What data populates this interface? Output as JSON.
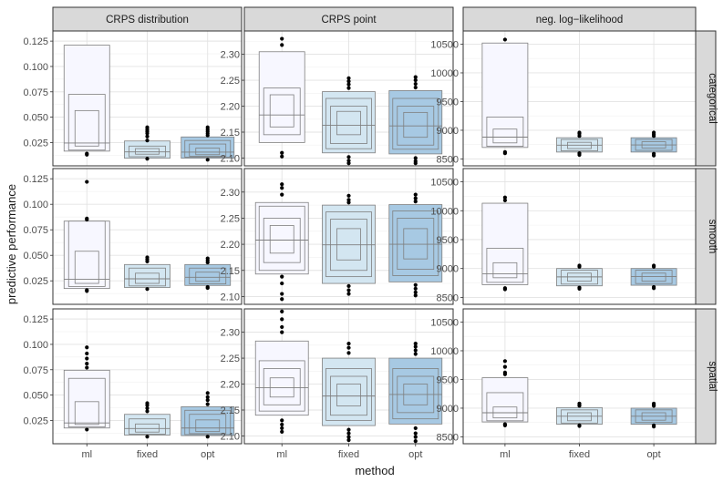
{
  "chart_data": {
    "type": "boxplot",
    "title": "",
    "xlabel": "method",
    "ylabel": "predictive performance",
    "categories": [
      "ml",
      "fixed",
      "opt"
    ],
    "fill_colors": {
      "ml": "#f7f7ff",
      "fixed": "#d3e6f1",
      "opt": "#a7c9e3"
    },
    "columns": [
      {
        "label": "CRPS distribution",
        "ylim": [
          0.002,
          0.135
        ],
        "ticks": [
          0.025,
          0.05,
          0.075,
          0.1,
          0.125
        ],
        "tick_labels": [
          "0.025",
          "0.050",
          "0.075",
          "0.100",
          "0.125"
        ]
      },
      {
        "label": "CRPS point",
        "ylim": [
          2.085,
          2.345
        ],
        "ticks": [
          2.1,
          2.15,
          2.2,
          2.25,
          2.3
        ],
        "tick_labels": [
          "2.10",
          "2.15",
          "2.20",
          "2.25",
          "2.30"
        ]
      },
      {
        "label": "neg. log−likelihood",
        "ylim": [
          8380,
          10730
        ],
        "ticks": [
          8500,
          9000,
          9500,
          10000,
          10500
        ],
        "tick_labels": [
          "8500",
          "9000",
          "9500",
          "10000",
          "10500"
        ]
      }
    ],
    "rows": [
      {
        "label": "categorical"
      },
      {
        "label": "smooth"
      },
      {
        "label": "spatial"
      }
    ],
    "panels": [
      [
        {
          "ml": {
            "levels": [
              [
                0.0215,
                0.0565
              ],
              [
                0.0175,
                0.0725
              ],
              [
                0.0165,
                0.121
              ]
            ],
            "median": 0.0245,
            "outliers": [
              0.014,
              0.013
            ]
          },
          "fixed": {
            "levels": [
              [
                0.0135,
                0.019
              ],
              [
                0.011,
                0.0215
              ],
              [
                0.0095,
                0.0265
              ]
            ],
            "median": 0.0158,
            "outliers": [
              0.027,
              0.031,
              0.034,
              0.036,
              0.038,
              0.04,
              0.009
            ]
          },
          "opt": {
            "levels": [
              [
                0.013,
                0.0195
              ],
              [
                0.0115,
                0.0235
              ],
              [
                0.0105,
                0.027
              ],
              [
                0.0095,
                0.0305
              ]
            ],
            "median": 0.0155,
            "outliers": [
              0.032,
              0.034,
              0.036,
              0.038,
              0.04,
              0.008
            ]
          }
        },
        {
          "ml": {
            "levels": [
              [
                2.16,
                2.222
              ],
              [
                2.145,
                2.235
              ],
              [
                2.13,
                2.305
              ]
            ],
            "median": 2.183,
            "outliers": [
              2.318,
              2.33,
              2.11,
              2.103
            ]
          },
          "fixed": {
            "levels": [
              [
                2.145,
                2.19
              ],
              [
                2.128,
                2.2
              ],
              [
                2.118,
                2.215
              ],
              [
                2.11,
                2.228
              ]
            ],
            "median": 2.163,
            "outliers": [
              2.235,
              2.242,
              2.248,
              2.254,
              2.102,
              2.095,
              2.09
            ]
          },
          "opt": {
            "levels": [
              [
                2.14,
                2.188
              ],
              [
                2.125,
                2.2
              ],
              [
                2.117,
                2.215
              ],
              [
                2.108,
                2.23
              ]
            ],
            "median": 2.162,
            "outliers": [
              2.236,
              2.243,
              2.25,
              2.256,
              2.1,
              2.094,
              2.09
            ]
          }
        },
        {
          "ml": {
            "levels": [
              [
                8780,
                9020
              ],
              [
                8720,
                9230
              ],
              [
                8700,
                10520
              ]
            ],
            "median": 8880,
            "outliers": [
              8620,
              8600,
              10580
            ]
          },
          "fixed": {
            "levels": [
              [
                8680,
                8790
              ],
              [
                8640,
                8840
              ],
              [
                8620,
                8870
              ]
            ],
            "median": 8740,
            "outliers": [
              8900,
              8940,
              8960,
              8600,
              8570
            ]
          },
          "opt": {
            "levels": [
              [
                8690,
                8800
              ],
              [
                8650,
                8840
              ],
              [
                8620,
                8870
              ]
            ],
            "median": 8745,
            "outliers": [
              8900,
              8930,
              8960,
              8590,
              8560
            ]
          }
        }
      ],
      [
        {
          "ml": {
            "levels": [
              [
                0.0225,
                0.054
              ],
              [
                0.0195,
                0.0835
              ],
              [
                0.0175,
                0.0835
              ]
            ],
            "median": 0.0265,
            "outliers": [
              0.122,
              0.086,
              0.085,
              0.016,
              0.015
            ]
          },
          "fixed": {
            "levels": [
              [
                0.0225,
                0.0325
              ],
              [
                0.02,
                0.0375
              ],
              [
                0.0185,
                0.041
              ]
            ],
            "median": 0.027,
            "outliers": [
              0.044,
              0.046,
              0.048,
              0.017
            ]
          },
          "opt": {
            "levels": [
              [
                0.0245,
                0.0335
              ],
              [
                0.022,
                0.0375
              ],
              [
                0.0205,
                0.041
              ]
            ],
            "median": 0.0285,
            "outliers": [
              0.043,
              0.045,
              0.047,
              0.019,
              0.018
            ]
          }
        },
        {
          "ml": {
            "levels": [
              [
                2.183,
                2.236
              ],
              [
                2.165,
                2.25
              ],
              [
                2.15,
                2.273
              ],
              [
                2.143,
                2.28
              ]
            ],
            "median": 2.208,
            "outliers": [
              2.295,
              2.308,
              2.315,
              2.138,
              2.125,
              2.105,
              2.095
            ]
          },
          "fixed": {
            "levels": [
              [
                2.17,
                2.23
              ],
              [
                2.15,
                2.248
              ],
              [
                2.138,
                2.262
              ],
              [
                2.125,
                2.275
              ]
            ],
            "median": 2.199,
            "outliers": [
              2.28,
              2.285,
              2.293,
              2.12,
              2.112,
              2.105
            ]
          },
          "opt": {
            "levels": [
              [
                2.172,
                2.23
              ],
              [
                2.152,
                2.25
              ],
              [
                2.14,
                2.264
              ],
              [
                2.128,
                2.276
              ]
            ],
            "median": 2.2,
            "outliers": [
              2.282,
              2.288,
              2.295,
              2.122,
              2.115,
              2.108,
              2.102
            ]
          }
        },
        {
          "ml": {
            "levels": [
              [
                8840,
                9100
              ],
              [
                8760,
                9350
              ],
              [
                8720,
                10130
              ]
            ],
            "median": 8910,
            "outliers": [
              10180,
              10230,
              8660,
              8640
            ]
          },
          "fixed": {
            "levels": [
              [
                8780,
                8920
              ],
              [
                8730,
                8970
              ],
              [
                8700,
                9000
              ]
            ],
            "median": 8855,
            "outliers": [
              9030,
              9050,
              8670,
              8650
            ]
          },
          "opt": {
            "levels": [
              [
                8780,
                8920
              ],
              [
                8740,
                8970
              ],
              [
                8710,
                9000
              ]
            ],
            "median": 8860,
            "outliers": [
              9030,
              9050,
              8680,
              8660
            ]
          }
        }
      ],
      [
        {
          "ml": {
            "levels": [
              [
                0.021,
                0.0435
              ],
              [
                0.0185,
                0.0665
              ],
              [
                0.0175,
                0.0745
              ]
            ],
            "median": 0.0225,
            "outliers": [
              0.077,
              0.081,
              0.086,
              0.091,
              0.097,
              0.016
            ]
          },
          "fixed": {
            "levels": [
              [
                0.0135,
                0.0215
              ],
              [
                0.0115,
                0.0265
              ],
              [
                0.0105,
                0.031
              ]
            ],
            "median": 0.017,
            "outliers": [
              0.034,
              0.037,
              0.04,
              0.042,
              0.009
            ]
          },
          "opt": {
            "levels": [
              [
                0.014,
                0.0255
              ],
              [
                0.012,
                0.031
              ],
              [
                0.011,
                0.035
              ],
              [
                0.01,
                0.0385
              ]
            ],
            "median": 0.0175,
            "outliers": [
              0.041,
              0.045,
              0.048,
              0.052,
              0.009
            ]
          }
        },
        {
          "ml": {
            "levels": [
              [
                2.175,
                2.212
              ],
              [
                2.16,
                2.23
              ],
              [
                2.148,
                2.245
              ],
              [
                2.14,
                2.283
              ]
            ],
            "median": 2.193,
            "outliers": [
              2.3,
              2.31,
              2.325,
              2.34,
              2.13,
              2.122,
              2.115,
              2.108
            ]
          },
          "fixed": {
            "levels": [
              [
                2.158,
                2.2
              ],
              [
                2.14,
                2.215
              ],
              [
                2.13,
                2.23
              ],
              [
                2.12,
                2.25
              ]
            ],
            "median": 2.177,
            "outliers": [
              2.26,
              2.27,
              2.278,
              2.112,
              2.105,
              2.098,
              2.092
            ]
          },
          "opt": {
            "levels": [
              [
                2.16,
                2.2
              ],
              [
                2.145,
                2.215
              ],
              [
                2.133,
                2.23
              ],
              [
                2.123,
                2.25
              ]
            ],
            "median": 2.18,
            "outliers": [
              2.258,
              2.265,
              2.272,
              2.278,
              2.115,
              2.105,
              2.098,
              2.09
            ]
          }
        },
        {
          "ml": {
            "levels": [
              [
                8830,
                9020
              ],
              [
                8780,
                9270
              ],
              [
                8760,
                9530
              ]
            ],
            "median": 8920,
            "outliers": [
              9590,
              9620,
              9720,
              9820,
              8720,
              8700
            ]
          },
          "fixed": {
            "levels": [
              [
                8780,
                8920
              ],
              [
                8740,
                8970
              ],
              [
                8720,
                9010
              ]
            ],
            "median": 8860,
            "outliers": [
              9040,
              9060,
              9080,
              8700,
              8690
            ]
          },
          "opt": {
            "levels": [
              [
                8790,
                8920
              ],
              [
                8750,
                8970
              ],
              [
                8720,
                9000
              ]
            ],
            "median": 8860,
            "outliers": [
              9040,
              9060,
              9080,
              8700,
              8680
            ]
          }
        }
      ]
    ]
  }
}
